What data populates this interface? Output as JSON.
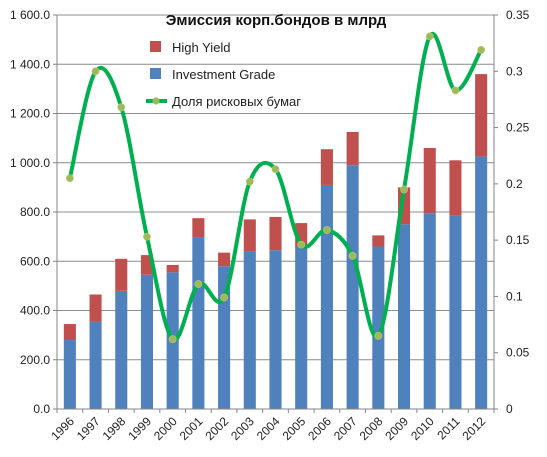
{
  "chart_data": {
    "type": "bar",
    "title": "Эмиссия корп.бондов в млрд",
    "categories": [
      "1996",
      "1997",
      "1998",
      "1999",
      "2000",
      "2001",
      "2002",
      "2003",
      "2004",
      "2005",
      "2006",
      "2007",
      "2008",
      "2009",
      "2010",
      "2011",
      "2012"
    ],
    "stacked": true,
    "series": [
      {
        "name": "Investment Grade",
        "type": "bar",
        "axis": "left",
        "color": "#4f81bd",
        "values": [
          280,
          355,
          480,
          545,
          555,
          695,
          580,
          640,
          645,
          660,
          910,
          990,
          660,
          750,
          795,
          785,
          1025
        ]
      },
      {
        "name": "High Yield",
        "type": "bar",
        "axis": "left",
        "color": "#c0504d",
        "values": [
          65,
          110,
          130,
          80,
          30,
          80,
          55,
          130,
          135,
          95,
          145,
          135,
          45,
          150,
          265,
          225,
          335
        ]
      },
      {
        "name": "Доля рисковых бумаг",
        "type": "line",
        "axis": "right",
        "color": "#00b050",
        "marker_color": "#9bbb59",
        "smooth": true,
        "values": [
          0.205,
          0.3,
          0.268,
          0.153,
          0.062,
          0.111,
          0.099,
          0.202,
          0.213,
          0.146,
          0.159,
          0.136,
          0.065,
          0.195,
          0.331,
          0.283,
          0.319
        ]
      }
    ],
    "y_left": {
      "min": 0,
      "max": 1600,
      "step": 200,
      "tick_labels": [
        "0.0",
        "200.0",
        "400.0",
        "600.0",
        "800.0",
        "1 000.0",
        "1 200.0",
        "1 400.0",
        "1 600.0"
      ]
    },
    "y_right": {
      "min": 0,
      "max": 0.35,
      "step": 0.05,
      "tick_labels": [
        "0",
        "0.05",
        "0.1",
        "0.15",
        "0.2",
        "0.25",
        "0.3",
        "0.35"
      ]
    },
    "legend": [
      {
        "label": "High Yield",
        "kind": "bar",
        "color": "#c0504d"
      },
      {
        "label": "Investment Grade",
        "kind": "bar",
        "color": "#4f81bd"
      },
      {
        "label": "Доля рисковых бумаг",
        "kind": "line",
        "color": "#00b050",
        "marker_color": "#9bbb59"
      }
    ],
    "legend_position": "top-left (inside plot)",
    "grid": "horizontal",
    "colors": {
      "grid": "#8c8c8c",
      "axis": "#868686",
      "plot_border": "#868686"
    }
  }
}
